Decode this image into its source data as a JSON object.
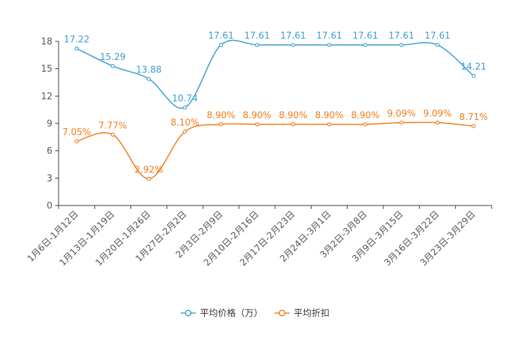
{
  "chart_data": {
    "type": "line",
    "title": "",
    "xlabel": "",
    "ylabel": "",
    "ylim": [
      0,
      18
    ],
    "yticks": [
      0,
      3,
      6,
      9,
      12,
      15,
      18
    ],
    "grid": false,
    "legend_position": "bottom-center",
    "categories": [
      "1月6日-1月12日",
      "1月13日-1月19日",
      "1月20日-1月26日",
      "1月27日-2月2日",
      "2月3日-2月9日",
      "2月10日-2月16日",
      "2月17日-2月23日",
      "2月24日-3月1日",
      "3月2日-3月8日",
      "3月9日-3月15日",
      "3月16日-3月22日",
      "3月23日-3月29日"
    ],
    "series": [
      {
        "name": "平均价格（万）",
        "color": "#3a9fd1",
        "values": [
          17.22,
          15.29,
          13.88,
          10.74,
          17.61,
          17.61,
          17.61,
          17.61,
          17.61,
          17.61,
          17.61,
          14.21
        ],
        "labels": [
          "17.22",
          "15.29",
          "13.88",
          "10.74",
          "17.61",
          "17.61",
          "17.61",
          "17.61",
          "17.61",
          "17.61",
          "17.61",
          "14.21"
        ]
      },
      {
        "name": "平均折扣",
        "color": "#f07b1a",
        "values": [
          7.05,
          7.77,
          2.92,
          8.1,
          8.9,
          8.9,
          8.9,
          8.9,
          8.9,
          9.09,
          9.09,
          8.71
        ],
        "labels": [
          "7.05%",
          "7.77%",
          "2.92%",
          "8.10%",
          "8.90%",
          "8.90%",
          "8.90%",
          "8.90%",
          "8.90%",
          "9.09%",
          "9.09%",
          "8.71%"
        ]
      }
    ]
  }
}
